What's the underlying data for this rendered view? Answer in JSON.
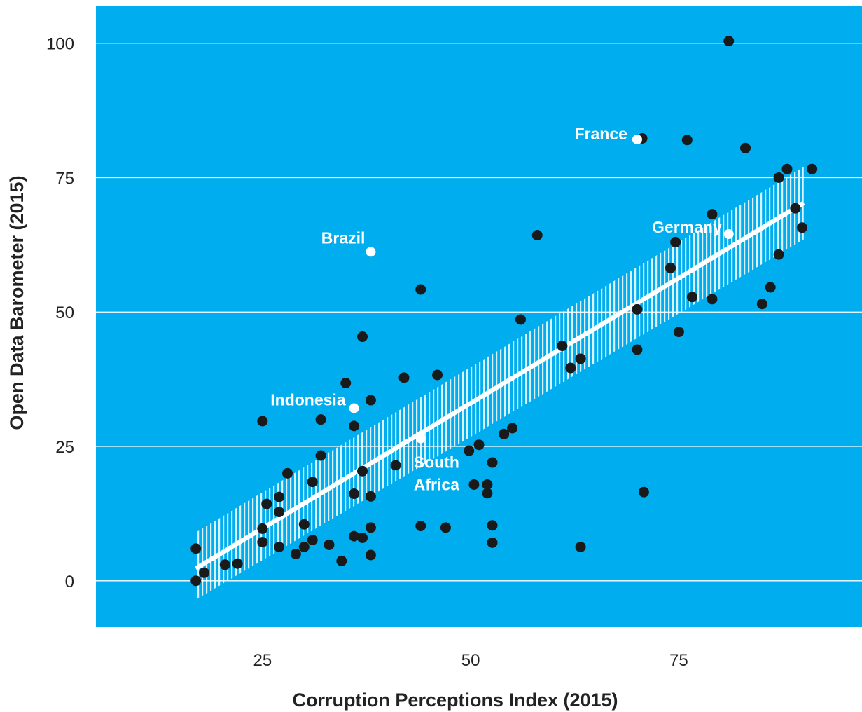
{
  "colors": {
    "plot_background": "#00AEEF",
    "grid": "#FFFFFF",
    "points": "#1A1A1A",
    "highlight_points": "#FFFFFF",
    "trend_line": "#FFFFFF",
    "confidence_band": "#FFFFFF",
    "text": "#222222"
  },
  "chart_data": {
    "type": "scatter",
    "title": "",
    "xlabel": "Corruption Perceptions Index (2015)",
    "ylabel": "Open Data Barometer (2015)",
    "xlim": [
      5,
      97
    ],
    "ylim": [
      -8.5,
      107
    ],
    "xticks": [
      25,
      50,
      75
    ],
    "yticks": [
      0,
      25,
      50,
      75,
      100
    ],
    "xtick_labels": [
      "25",
      "50",
      "75"
    ],
    "ytick_labels": [
      "0",
      "25",
      "50",
      "75",
      "100"
    ],
    "grid": "horizontal",
    "legend": "none",
    "points": [
      [
        17,
        0
      ],
      [
        17,
        6
      ],
      [
        18,
        1.5
      ],
      [
        20.5,
        3
      ],
      [
        22,
        3.2
      ],
      [
        25,
        29.7
      ],
      [
        25,
        9.7
      ],
      [
        25,
        7.2
      ],
      [
        25.5,
        14.3
      ],
      [
        27,
        15.6
      ],
      [
        27,
        12.8
      ],
      [
        27,
        6.3
      ],
      [
        28,
        20
      ],
      [
        29,
        5
      ],
      [
        30,
        10.5
      ],
      [
        30,
        6.3
      ],
      [
        31,
        18.4
      ],
      [
        31,
        7.6
      ],
      [
        32,
        30
      ],
      [
        32,
        23.3
      ],
      [
        33,
        6.7
      ],
      [
        34.5,
        3.7
      ],
      [
        35,
        36.8
      ],
      [
        36,
        28.8
      ],
      [
        36,
        16.2
      ],
      [
        36,
        8.3
      ],
      [
        37,
        45.4
      ],
      [
        37,
        20.4
      ],
      [
        37,
        8
      ],
      [
        38,
        33.6
      ],
      [
        38,
        15.7
      ],
      [
        38,
        9.9
      ],
      [
        38,
        4.8
      ],
      [
        41,
        21.5
      ],
      [
        42,
        37.8
      ],
      [
        44,
        54.2
      ],
      [
        44,
        10.2
      ],
      [
        46,
        38.3
      ],
      [
        47,
        9.9
      ],
      [
        49.8,
        24.2
      ],
      [
        50.4,
        17.9
      ],
      [
        51,
        25.3
      ],
      [
        52,
        17.9
      ],
      [
        52,
        16.3
      ],
      [
        52.6,
        22
      ],
      [
        52.6,
        10.3
      ],
      [
        52.6,
        7.1
      ],
      [
        54,
        27.3
      ],
      [
        55,
        28.4
      ],
      [
        56,
        48.6
      ],
      [
        58,
        64.3
      ],
      [
        61,
        43.7
      ],
      [
        62,
        39.6
      ],
      [
        63.2,
        41.3
      ],
      [
        63.2,
        6.3
      ],
      [
        70,
        50.5
      ],
      [
        70,
        43
      ],
      [
        70.6,
        82.3
      ],
      [
        70.8,
        16.5
      ],
      [
        74,
        58.2
      ],
      [
        74.6,
        63
      ],
      [
        75,
        46.3
      ],
      [
        76,
        82
      ],
      [
        76.6,
        52.8
      ],
      [
        79,
        68.2
      ],
      [
        79,
        52.4
      ],
      [
        81,
        100.4
      ],
      [
        83,
        80.5
      ],
      [
        85,
        51.5
      ],
      [
        86,
        54.6
      ],
      [
        87,
        75
      ],
      [
        87,
        60.7
      ],
      [
        88,
        76.6
      ],
      [
        89,
        69.3
      ],
      [
        89.8,
        65.7
      ],
      [
        91,
        76.6
      ]
    ],
    "highlighted": [
      {
        "name": "France",
        "x": 70,
        "y": 82.1
      },
      {
        "name": "Brazil",
        "x": 38,
        "y": 61.2
      },
      {
        "name": "Germany",
        "x": 81,
        "y": 64.5
      },
      {
        "name": "Indonesia",
        "x": 36,
        "y": 32.1
      },
      {
        "name": "South Africa",
        "x": 44,
        "y": 26.5
      }
    ],
    "trend_line": {
      "x": [
        17,
        90
      ],
      "y": [
        2.3,
        70.3
      ]
    },
    "confidence_band": {
      "x": [
        17,
        90
      ],
      "lower": [
        -3.5,
        63.5
      ],
      "upper": [
        9,
        77
      ]
    },
    "annotations": [
      {
        "lines": [
          "France"
        ],
        "for": "France"
      },
      {
        "lines": [
          "Brazil"
        ],
        "for": "Brazil"
      },
      {
        "lines": [
          "Germany"
        ],
        "for": "Germany"
      },
      {
        "lines": [
          "Indonesia"
        ],
        "for": "Indonesia"
      },
      {
        "lines": [
          "South",
          "Africa"
        ],
        "for": "South Africa"
      }
    ]
  }
}
